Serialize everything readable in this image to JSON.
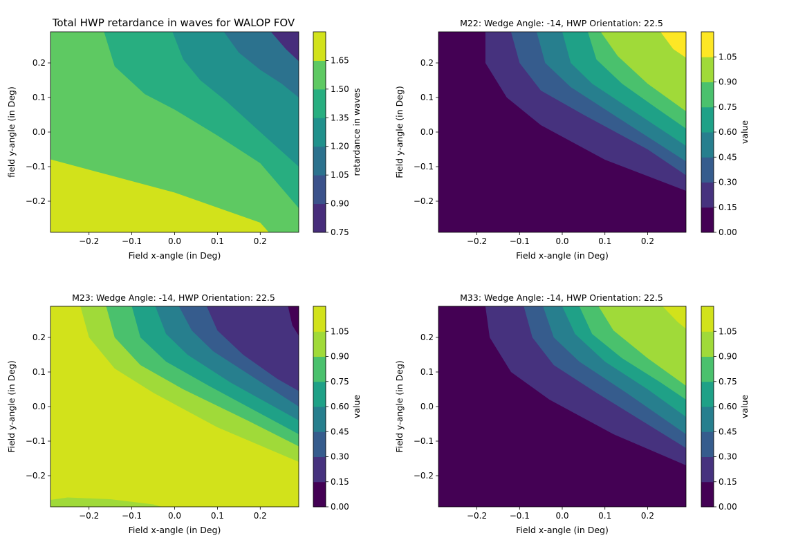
{
  "chart_data": [
    {
      "type": "heatmap",
      "subtype": "filled-contour",
      "title": "Total HWP retardance in waves for WALOP FOV",
      "xlabel": "Field x-angle (in Deg)",
      "ylabel": "field y-angle (in Deg)",
      "xlim": [
        -0.29,
        0.29
      ],
      "ylim": [
        -0.29,
        0.29
      ],
      "xticks": [
        "−0.2",
        "−0.1",
        "0.0",
        "0.1",
        "0.2"
      ],
      "yticks": [
        "−0.2",
        "−0.1",
        "0.0",
        "0.1",
        "0.2"
      ],
      "colorbar_label": "retardance in waves",
      "levels": [
        "0.75",
        "0.90",
        "1.05",
        "1.20",
        "1.35",
        "1.50",
        "1.65"
      ],
      "colors": [
        "#472d7b",
        "#3b528b",
        "#2c728e",
        "#21918c",
        "#28ae80",
        "#5ec962",
        "#d2e21b"
      ],
      "boundaries": [
        {
          "from_band": 5,
          "to_band": 6,
          "points": [
            [
              -0.29,
              -0.079
            ],
            [
              0.0,
              -0.175
            ],
            [
              0.2,
              -0.262
            ],
            [
              0.22,
              -0.29
            ]
          ]
        },
        {
          "from_band": 4,
          "to_band": 5,
          "points": [
            [
              -0.165,
              0.29
            ],
            [
              -0.14,
              0.19
            ],
            [
              -0.07,
              0.11
            ],
            [
              0.0,
              0.065
            ],
            [
              0.1,
              -0.01
            ],
            [
              0.2,
              -0.09
            ],
            [
              0.29,
              -0.22
            ]
          ]
        },
        {
          "from_band": 3,
          "to_band": 4,
          "points": [
            [
              -0.005,
              0.29
            ],
            [
              0.02,
              0.21
            ],
            [
              0.06,
              0.15
            ],
            [
              0.12,
              0.09
            ],
            [
              0.2,
              0.0
            ],
            [
              0.29,
              -0.1
            ]
          ]
        },
        {
          "from_band": 2,
          "to_band": 3,
          "points": [
            [
              0.115,
              0.29
            ],
            [
              0.15,
              0.23
            ],
            [
              0.2,
              0.18
            ],
            [
              0.25,
              0.14
            ],
            [
              0.29,
              0.1
            ]
          ]
        },
        {
          "from_band": 1,
          "to_band": 2,
          "points": [
            [
              0.225,
              0.29
            ],
            [
              0.26,
              0.24
            ],
            [
              0.29,
              0.205
            ]
          ]
        }
      ]
    },
    {
      "type": "heatmap",
      "subtype": "filled-contour",
      "title": "M22: Wedge Angle: -14, HWP Orientation: 22.5",
      "xlabel": "Field x-angle (in Deg)",
      "ylabel": "Field y-angle (in Deg)",
      "xlim": [
        -0.29,
        0.29
      ],
      "ylim": [
        -0.29,
        0.29
      ],
      "xticks": [
        "−0.2",
        "−0.1",
        "0.0",
        "0.1",
        "0.2"
      ],
      "yticks": [
        "−0.2",
        "−0.1",
        "0.0",
        "0.1",
        "0.2"
      ],
      "colorbar_label": "value",
      "levels": [
        "0.00",
        "0.15",
        "0.30",
        "0.45",
        "0.60",
        "0.75",
        "0.90",
        "1.05"
      ],
      "colors": [
        "#440154",
        "#46327e",
        "#365c8d",
        "#277f8e",
        "#1fa187",
        "#4ac16d",
        "#a0da39",
        "#fde725"
      ],
      "boundaries": [
        {
          "from_band": 0,
          "to_band": 1,
          "points": [
            [
              -0.18,
              0.29
            ],
            [
              -0.18,
              0.2
            ],
            [
              -0.13,
              0.1
            ],
            [
              -0.05,
              0.02
            ],
            [
              0.1,
              -0.08
            ],
            [
              0.29,
              -0.17
            ]
          ]
        },
        {
          "from_band": 1,
          "to_band": 2,
          "points": [
            [
              -0.12,
              0.29
            ],
            [
              -0.1,
              0.2
            ],
            [
              -0.05,
              0.12
            ],
            [
              0.05,
              0.05
            ],
            [
              0.2,
              -0.05
            ],
            [
              0.29,
              -0.125
            ]
          ]
        },
        {
          "from_band": 2,
          "to_band": 3,
          "points": [
            [
              -0.06,
              0.29
            ],
            [
              -0.04,
              0.2
            ],
            [
              0.02,
              0.13
            ],
            [
              0.12,
              0.05
            ],
            [
              0.29,
              -0.085
            ]
          ]
        },
        {
          "from_band": 3,
          "to_band": 4,
          "points": [
            [
              0.0,
              0.29
            ],
            [
              0.02,
              0.2
            ],
            [
              0.07,
              0.14
            ],
            [
              0.18,
              0.05
            ],
            [
              0.29,
              -0.04
            ]
          ]
        },
        {
          "from_band": 4,
          "to_band": 5,
          "points": [
            [
              0.06,
              0.29
            ],
            [
              0.08,
              0.21
            ],
            [
              0.14,
              0.14
            ],
            [
              0.22,
              0.07
            ],
            [
              0.29,
              0.01
            ]
          ]
        },
        {
          "from_band": 5,
          "to_band": 6,
          "points": [
            [
              0.09,
              0.29
            ],
            [
              0.13,
              0.22
            ],
            [
              0.2,
              0.14
            ],
            [
              0.29,
              0.06
            ]
          ]
        },
        {
          "from_band": 6,
          "to_band": 7,
          "points": [
            [
              0.23,
              0.29
            ],
            [
              0.26,
              0.24
            ],
            [
              0.29,
              0.215
            ]
          ]
        }
      ]
    },
    {
      "type": "heatmap",
      "subtype": "filled-contour",
      "title": "M23: Wedge Angle: -14, HWP Orientation: 22.5",
      "xlabel": "Field x-angle (in Deg)",
      "ylabel": "Field y-angle (in Deg)",
      "xlim": [
        -0.29,
        0.29
      ],
      "ylim": [
        -0.29,
        0.29
      ],
      "xticks": [
        "−0.2",
        "−0.1",
        "0.0",
        "0.1",
        "0.2"
      ],
      "yticks": [
        "−0.2",
        "−0.1",
        "0.0",
        "0.1",
        "0.2"
      ],
      "colorbar_label": "value",
      "levels": [
        "0.00",
        "0.15",
        "0.30",
        "0.45",
        "0.60",
        "0.75",
        "0.90",
        "1.05"
      ],
      "colors": [
        "#440154",
        "#46327e",
        "#365c8d",
        "#277f8e",
        "#1fa187",
        "#4ac16d",
        "#a0da39",
        "#d2e21b"
      ],
      "bands_descending": true,
      "boundaries": [
        {
          "from_band": 7,
          "to_band": 6,
          "points": [
            [
              -0.22,
              0.29
            ],
            [
              -0.2,
              0.2
            ],
            [
              -0.14,
              0.11
            ],
            [
              -0.05,
              0.04
            ],
            [
              0.1,
              -0.06
            ],
            [
              0.29,
              -0.16
            ]
          ]
        },
        {
          "from_band": 6,
          "to_band": 5,
          "points": [
            [
              -0.16,
              0.29
            ],
            [
              -0.14,
              0.2
            ],
            [
              -0.08,
              0.12
            ],
            [
              0.02,
              0.05
            ],
            [
              0.17,
              -0.04
            ],
            [
              0.29,
              -0.115
            ]
          ]
        },
        {
          "from_band": 5,
          "to_band": 4,
          "points": [
            [
              -0.1,
              0.29
            ],
            [
              -0.08,
              0.2
            ],
            [
              -0.02,
              0.13
            ],
            [
              0.08,
              0.06
            ],
            [
              0.2,
              -0.02
            ],
            [
              0.29,
              -0.08
            ]
          ]
        },
        {
          "from_band": 4,
          "to_band": 3,
          "points": [
            [
              -0.045,
              0.29
            ],
            [
              -0.02,
              0.21
            ],
            [
              0.03,
              0.15
            ],
            [
              0.13,
              0.07
            ],
            [
              0.29,
              -0.04
            ]
          ]
        },
        {
          "from_band": 3,
          "to_band": 2,
          "points": [
            [
              0.01,
              0.29
            ],
            [
              0.04,
              0.22
            ],
            [
              0.09,
              0.16
            ],
            [
              0.19,
              0.08
            ],
            [
              0.29,
              0.0
            ]
          ]
        },
        {
          "from_band": 2,
          "to_band": 1,
          "points": [
            [
              0.075,
              0.29
            ],
            [
              0.1,
              0.22
            ],
            [
              0.16,
              0.15
            ],
            [
              0.24,
              0.08
            ],
            [
              0.29,
              0.045
            ]
          ]
        },
        {
          "from_band": 1,
          "to_band": 0,
          "points": [
            [
              0.265,
              0.29
            ],
            [
              0.275,
              0.235
            ],
            [
              0.29,
              0.205
            ]
          ]
        }
      ],
      "bottom_band": {
        "band": 6,
        "points": [
          [
            -0.29,
            -0.27
          ],
          [
            -0.25,
            -0.263
          ],
          [
            -0.15,
            -0.268
          ],
          [
            -0.05,
            -0.283
          ],
          [
            -0.03,
            -0.29
          ]
        ]
      }
    },
    {
      "type": "heatmap",
      "subtype": "filled-contour",
      "title": "M33: Wedge Angle: -14, HWP Orientation: 22.5",
      "xlabel": "Field x-angle (in Deg)",
      "ylabel": "Field y-angle (in Deg)",
      "xlim": [
        -0.29,
        0.29
      ],
      "ylim": [
        -0.29,
        0.29
      ],
      "xticks": [
        "−0.2",
        "−0.1",
        "0.0",
        "0.1",
        "0.2"
      ],
      "yticks": [
        "−0.2",
        "−0.1",
        "0.0",
        "0.1",
        "0.2"
      ],
      "colorbar_label": "value",
      "levels": [
        "0.00",
        "0.15",
        "0.30",
        "0.45",
        "0.60",
        "0.75",
        "0.90",
        "1.05"
      ],
      "colors": [
        "#440154",
        "#46327e",
        "#365c8d",
        "#277f8e",
        "#1fa187",
        "#4ac16d",
        "#a0da39",
        "#d2e21b"
      ],
      "boundaries": [
        {
          "from_band": 0,
          "to_band": 1,
          "points": [
            [
              -0.18,
              0.29
            ],
            [
              -0.17,
              0.2
            ],
            [
              -0.12,
              0.1
            ],
            [
              -0.03,
              0.02
            ],
            [
              0.12,
              -0.08
            ],
            [
              0.29,
              -0.17
            ]
          ]
        },
        {
          "from_band": 1,
          "to_band": 2,
          "points": [
            [
              -0.09,
              0.29
            ],
            [
              -0.07,
              0.2
            ],
            [
              -0.02,
              0.12
            ],
            [
              0.08,
              0.04
            ],
            [
              0.29,
              -0.12
            ]
          ]
        },
        {
          "from_band": 2,
          "to_band": 3,
          "points": [
            [
              -0.045,
              0.29
            ],
            [
              -0.02,
              0.2
            ],
            [
              0.04,
              0.13
            ],
            [
              0.15,
              0.04
            ],
            [
              0.29,
              -0.08
            ]
          ]
        },
        {
          "from_band": 3,
          "to_band": 4,
          "points": [
            [
              0.0,
              0.29
            ],
            [
              0.03,
              0.21
            ],
            [
              0.1,
              0.13
            ],
            [
              0.2,
              0.05
            ],
            [
              0.29,
              -0.03
            ]
          ]
        },
        {
          "from_band": 4,
          "to_band": 5,
          "points": [
            [
              0.04,
              0.29
            ],
            [
              0.07,
              0.21
            ],
            [
              0.14,
              0.14
            ],
            [
              0.23,
              0.07
            ],
            [
              0.29,
              0.02
            ]
          ]
        },
        {
          "from_band": 5,
          "to_band": 6,
          "points": [
            [
              0.085,
              0.29
            ],
            [
              0.12,
              0.22
            ],
            [
              0.2,
              0.14
            ],
            [
              0.29,
              0.06
            ]
          ]
        },
        {
          "from_band": 6,
          "to_band": 7,
          "points": [
            [
              0.235,
              0.29
            ],
            [
              0.27,
              0.245
            ],
            [
              0.29,
              0.225
            ]
          ]
        }
      ]
    }
  ]
}
